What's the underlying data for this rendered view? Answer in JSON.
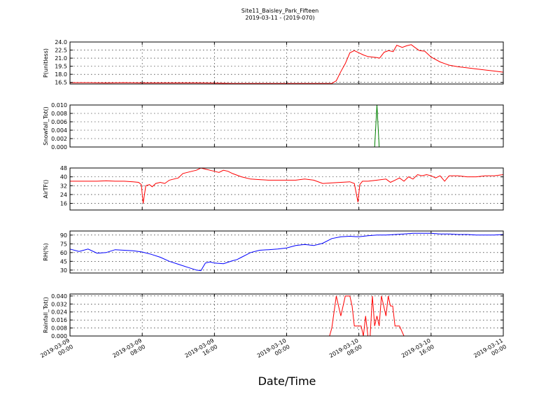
{
  "figure": {
    "title_line1": "Site11_Baisley_Park_Fifteen",
    "title_line2": "2019-03-11 - (2019-070)",
    "xlabel": "Date/Time"
  },
  "chart_data": [
    {
      "type": "line",
      "ylabel": "P(unitless)",
      "color": "#ff0000",
      "xlim": [
        0,
        48
      ],
      "ylim": [
        16.2,
        24.0
      ],
      "yticks": [
        16.5,
        18.0,
        19.5,
        21.0,
        22.5,
        24.0
      ],
      "ytick_labels": [
        "16.5",
        "18.0",
        "19.5",
        "21.0",
        "22.5",
        "24.0"
      ],
      "x": [
        0,
        2,
        4,
        6,
        8,
        10,
        12,
        14,
        16,
        18,
        20,
        22,
        24,
        26,
        28,
        29,
        29.5,
        30,
        30.5,
        31,
        31.5,
        32,
        32.5,
        33,
        33.5,
        34,
        34.3,
        34.8,
        35.3,
        35.8,
        36.2,
        36.8,
        37.3,
        37.8,
        38.2,
        38.7,
        39.3,
        40,
        41,
        42,
        43,
        44,
        45,
        46,
        47,
        48
      ],
      "y": [
        16.45,
        16.45,
        16.4,
        16.45,
        16.4,
        16.4,
        16.4,
        16.4,
        16.35,
        16.3,
        16.3,
        16.3,
        16.3,
        16.3,
        16.3,
        16.3,
        16.8,
        18.5,
        20.0,
        22.0,
        22.4,
        22.0,
        21.6,
        21.3,
        21.2,
        21.1,
        21.0,
        22.1,
        22.4,
        22.2,
        23.4,
        23.0,
        23.3,
        23.5,
        23.0,
        22.4,
        22.3,
        21.2,
        20.3,
        19.7,
        19.4,
        19.2,
        19.0,
        18.8,
        18.6,
        18.4
      ]
    },
    {
      "type": "line",
      "ylabel": "Snowfall_Tot()",
      "color": "#008000",
      "xlim": [
        0,
        48
      ],
      "ylim": [
        0.0,
        0.01
      ],
      "yticks": [
        0.0,
        0.002,
        0.004,
        0.006,
        0.008,
        0.01
      ],
      "ytick_labels": [
        "0.000",
        "0.002",
        "0.004",
        "0.006",
        "0.008",
        "0.010"
      ],
      "x": [
        0,
        33.5,
        33.75,
        34.0,
        34.25,
        48
      ],
      "y": [
        0.0,
        0.0,
        0.0,
        0.01,
        0.0,
        0.0
      ]
    },
    {
      "type": "line",
      "ylabel": "AirTF()",
      "color": "#ff0000",
      "xlim": [
        0,
        48
      ],
      "ylim": [
        10,
        48
      ],
      "yticks": [
        16,
        24,
        32,
        40,
        48
      ],
      "ytick_labels": [
        "16",
        "24",
        "32",
        "40",
        "48"
      ],
      "x": [
        0,
        1,
        2,
        3,
        4,
        5,
        6,
        7,
        7.6,
        7.9,
        8.1,
        8.4,
        8.8,
        9.1,
        9.5,
        10,
        10.5,
        11,
        11.5,
        12,
        12.5,
        13,
        13.5,
        14,
        14.5,
        15,
        15.5,
        16,
        16.5,
        17,
        17.5,
        18,
        19,
        20,
        21,
        22,
        23,
        24,
        25,
        26,
        27,
        28,
        29,
        30,
        31,
        31.5,
        31.9,
        32.1,
        32.4,
        33,
        34,
        35,
        35.5,
        36,
        36.5,
        37,
        37.5,
        38,
        38.5,
        39,
        39.5,
        40,
        40.5,
        41,
        41.5,
        42,
        43,
        44,
        45,
        46,
        47,
        48
      ],
      "y": [
        36,
        36,
        36,
        36,
        36.5,
        36,
        36,
        35.5,
        35,
        33,
        16,
        32,
        33,
        31,
        34,
        35,
        34,
        37,
        38,
        39,
        43,
        44,
        45,
        46,
        48,
        47,
        46,
        45,
        44,
        46,
        45,
        43,
        40,
        38,
        37.5,
        37,
        37,
        37,
        37,
        38,
        37,
        34,
        34.5,
        35,
        35.5,
        34,
        17,
        33,
        36,
        36,
        37,
        38,
        35,
        37,
        39,
        36,
        40,
        38,
        42,
        41,
        42,
        41,
        39,
        41,
        36,
        41,
        41,
        40,
        40,
        41,
        41,
        42
      ]
    },
    {
      "type": "line",
      "ylabel": "RH(%)",
      "color": "#0000ff",
      "xlim": [
        0,
        48
      ],
      "ylim": [
        25,
        97
      ],
      "yticks": [
        30,
        45,
        60,
        75,
        90
      ],
      "ytick_labels": [
        "30",
        "45",
        "60",
        "75",
        "90"
      ],
      "x": [
        0,
        1,
        2,
        3,
        4,
        5,
        6,
        7,
        8,
        9,
        10,
        11,
        12,
        13,
        14,
        14.5,
        15,
        15.5,
        16,
        17,
        18,
        18.5,
        19,
        19.5,
        20,
        21,
        22,
        23,
        24,
        25,
        26,
        27,
        28,
        29,
        30,
        31,
        32,
        33,
        34,
        35,
        36,
        37,
        38,
        39,
        40,
        41,
        42,
        43,
        44,
        45,
        46,
        47,
        48
      ],
      "y": [
        66,
        62,
        66,
        59,
        60,
        65,
        64,
        63,
        61,
        57,
        52,
        45,
        40,
        35,
        30,
        29,
        42,
        44,
        42,
        41,
        46,
        48,
        52,
        56,
        60,
        64,
        65,
        66,
        68,
        72,
        74,
        72,
        76,
        84,
        87,
        88,
        87,
        89,
        90,
        90,
        91,
        92,
        93,
        93,
        93,
        92,
        92,
        91,
        91,
        90,
        90,
        90,
        91
      ]
    },
    {
      "type": "line",
      "ylabel": "Rainfall_Tot()",
      "color": "#ff0000",
      "xlim": [
        0,
        48
      ],
      "ylim": [
        0.0,
        0.042
      ],
      "yticks": [
        0.0,
        0.008,
        0.016,
        0.024,
        0.032,
        0.04
      ],
      "ytick_labels": [
        "0.000",
        "0.008",
        "0.016",
        "0.024",
        "0.032",
        "0.040"
      ],
      "x": [
        0,
        28.75,
        29.0,
        29.5,
        30.0,
        30.5,
        31.0,
        31.25,
        31.5,
        32.0,
        32.25,
        32.5,
        32.75,
        33.0,
        33.25,
        33.5,
        33.75,
        34.0,
        34.25,
        34.5,
        35.0,
        35.25,
        35.5,
        35.75,
        36.0,
        36.25,
        36.5,
        37.0,
        37.5,
        48
      ],
      "y": [
        0.0,
        0.0,
        0.008,
        0.04,
        0.02,
        0.04,
        0.04,
        0.03,
        0.01,
        0.01,
        0.01,
        0.0,
        0.02,
        0.0,
        0.0,
        0.04,
        0.01,
        0.02,
        0.01,
        0.04,
        0.02,
        0.04,
        0.03,
        0.03,
        0.01,
        0.01,
        0.01,
        0.0,
        0.0,
        0.0
      ]
    }
  ],
  "xaxis": {
    "ticks": [
      0,
      8,
      16,
      24,
      32,
      40,
      48
    ],
    "tick_labels": [
      [
        "2019-03-09",
        "00:00"
      ],
      [
        "2019-03-09",
        "08:00"
      ],
      [
        "2019-03-09",
        "16:00"
      ],
      [
        "2019-03-10",
        "00:00"
      ],
      [
        "2019-03-10",
        "08:00"
      ],
      [
        "2019-03-10",
        "16:00"
      ],
      [
        "2019-03-11",
        "00:00"
      ]
    ]
  }
}
